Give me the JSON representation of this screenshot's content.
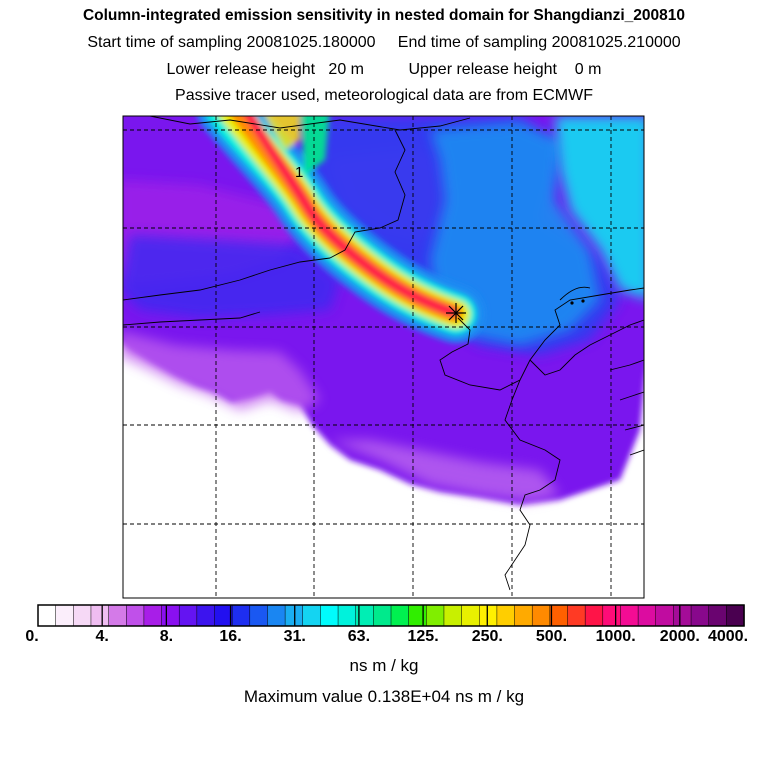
{
  "header": {
    "title": "Column-integrated emission sensitivity in nested domain for Shangdianzi_200810",
    "sampling_start_label": "Start time of sampling",
    "sampling_start": "20081025.180000",
    "sampling_end_label": "End time of sampling",
    "sampling_end": "20081025.210000",
    "lower_release_label": "Lower release height",
    "lower_release": "20 m",
    "upper_release_label": "Upper release height",
    "upper_release": "0 m",
    "note": "Passive tracer used, meteorological data are from ECMWF"
  },
  "map": {
    "plume_label": "1",
    "receptor_marker": "star-cross-icon"
  },
  "colorbar": {
    "ticks": [
      "0.",
      "4.",
      "8.",
      "16.",
      "31.",
      "63.",
      "125.",
      "250.",
      "500.",
      "1000.",
      "2000.",
      "4000."
    ],
    "colors": [
      "#ffffff",
      "#fbeefb",
      "#f6d9f6",
      "#efbdf1",
      "#d47ae8",
      "#c050ea",
      "#a81ee8",
      "#8a10f0",
      "#6414f2",
      "#3c14ee",
      "#2210f0",
      "#1e2ef0",
      "#1a58f2",
      "#1a86f2",
      "#1aaef2",
      "#14d4f2",
      "#00fcfc",
      "#00f2dc",
      "#00eeb4",
      "#00ea8c",
      "#00f050",
      "#30ee00",
      "#80ee00",
      "#c8f000",
      "#e8f000",
      "#fff000",
      "#ffce00",
      "#ffaa00",
      "#ff8a00",
      "#ff6000",
      "#ff3a24",
      "#ff1448",
      "#ff0c78",
      "#f40c94",
      "#dc0ca0",
      "#c00ca0",
      "#a40c98",
      "#88088c",
      "#6a0470",
      "#4a0050"
    ],
    "units": "ns m / kg",
    "max_label": "Maximum value",
    "max_value": "0.138E+04",
    "max_units": "ns m / kg"
  }
}
